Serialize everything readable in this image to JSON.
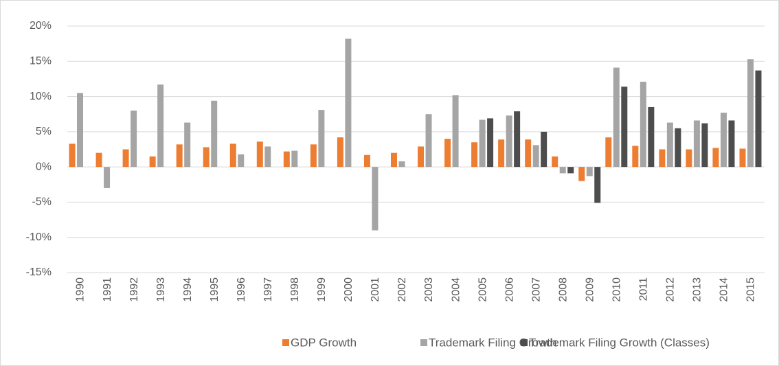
{
  "chart_data": {
    "type": "bar",
    "categories": [
      "1990",
      "1991",
      "1992",
      "1993",
      "1994",
      "1995",
      "1996",
      "1997",
      "1998",
      "1999",
      "2000",
      "2001",
      "2002",
      "2003",
      "2004",
      "2005",
      "2006",
      "2007",
      "2008",
      "2009",
      "2010",
      "2011",
      "2012",
      "2013",
      "2014",
      "2015"
    ],
    "series": [
      {
        "name": "GDP Growth",
        "color": "#ed7d31",
        "values": [
          3.3,
          2.0,
          2.5,
          1.5,
          3.2,
          2.8,
          3.3,
          3.6,
          2.2,
          3.2,
          4.2,
          1.7,
          2.0,
          2.9,
          4.0,
          3.5,
          3.9,
          3.9,
          1.5,
          -2.0,
          4.2,
          3.0,
          2.5,
          2.5,
          2.7,
          2.6
        ]
      },
      {
        "name": "Trademark Filing Growth",
        "color": "#a5a5a5",
        "values": [
          10.5,
          -3.0,
          8.0,
          11.7,
          6.3,
          9.4,
          1.8,
          2.9,
          2.3,
          8.1,
          18.2,
          -9.0,
          0.8,
          7.5,
          10.2,
          6.7,
          7.3,
          3.1,
          -0.9,
          -1.3,
          14.1,
          12.1,
          6.3,
          6.6,
          7.7,
          15.3
        ]
      },
      {
        "name": "Trademark Filing Growth (Classes)",
        "color": "#4d4d4d",
        "values": [
          null,
          null,
          null,
          null,
          null,
          null,
          null,
          null,
          null,
          null,
          null,
          null,
          null,
          null,
          null,
          6.9,
          7.9,
          5.0,
          -0.9,
          -5.1,
          11.4,
          8.5,
          5.5,
          6.2,
          6.6,
          13.7
        ]
      }
    ],
    "ylim": [
      -15,
      20
    ],
    "yticks": [
      {
        "value": -15,
        "label": "-15%"
      },
      {
        "value": -10,
        "label": "-10%"
      },
      {
        "value": -5,
        "label": "-5%"
      },
      {
        "value": 0,
        "label": "0%"
      },
      {
        "value": 5,
        "label": "5%"
      },
      {
        "value": 10,
        "label": "10%"
      },
      {
        "value": 15,
        "label": "15%"
      },
      {
        "value": 20,
        "label": "20%"
      }
    ],
    "grid": true,
    "legend": "bottom"
  }
}
